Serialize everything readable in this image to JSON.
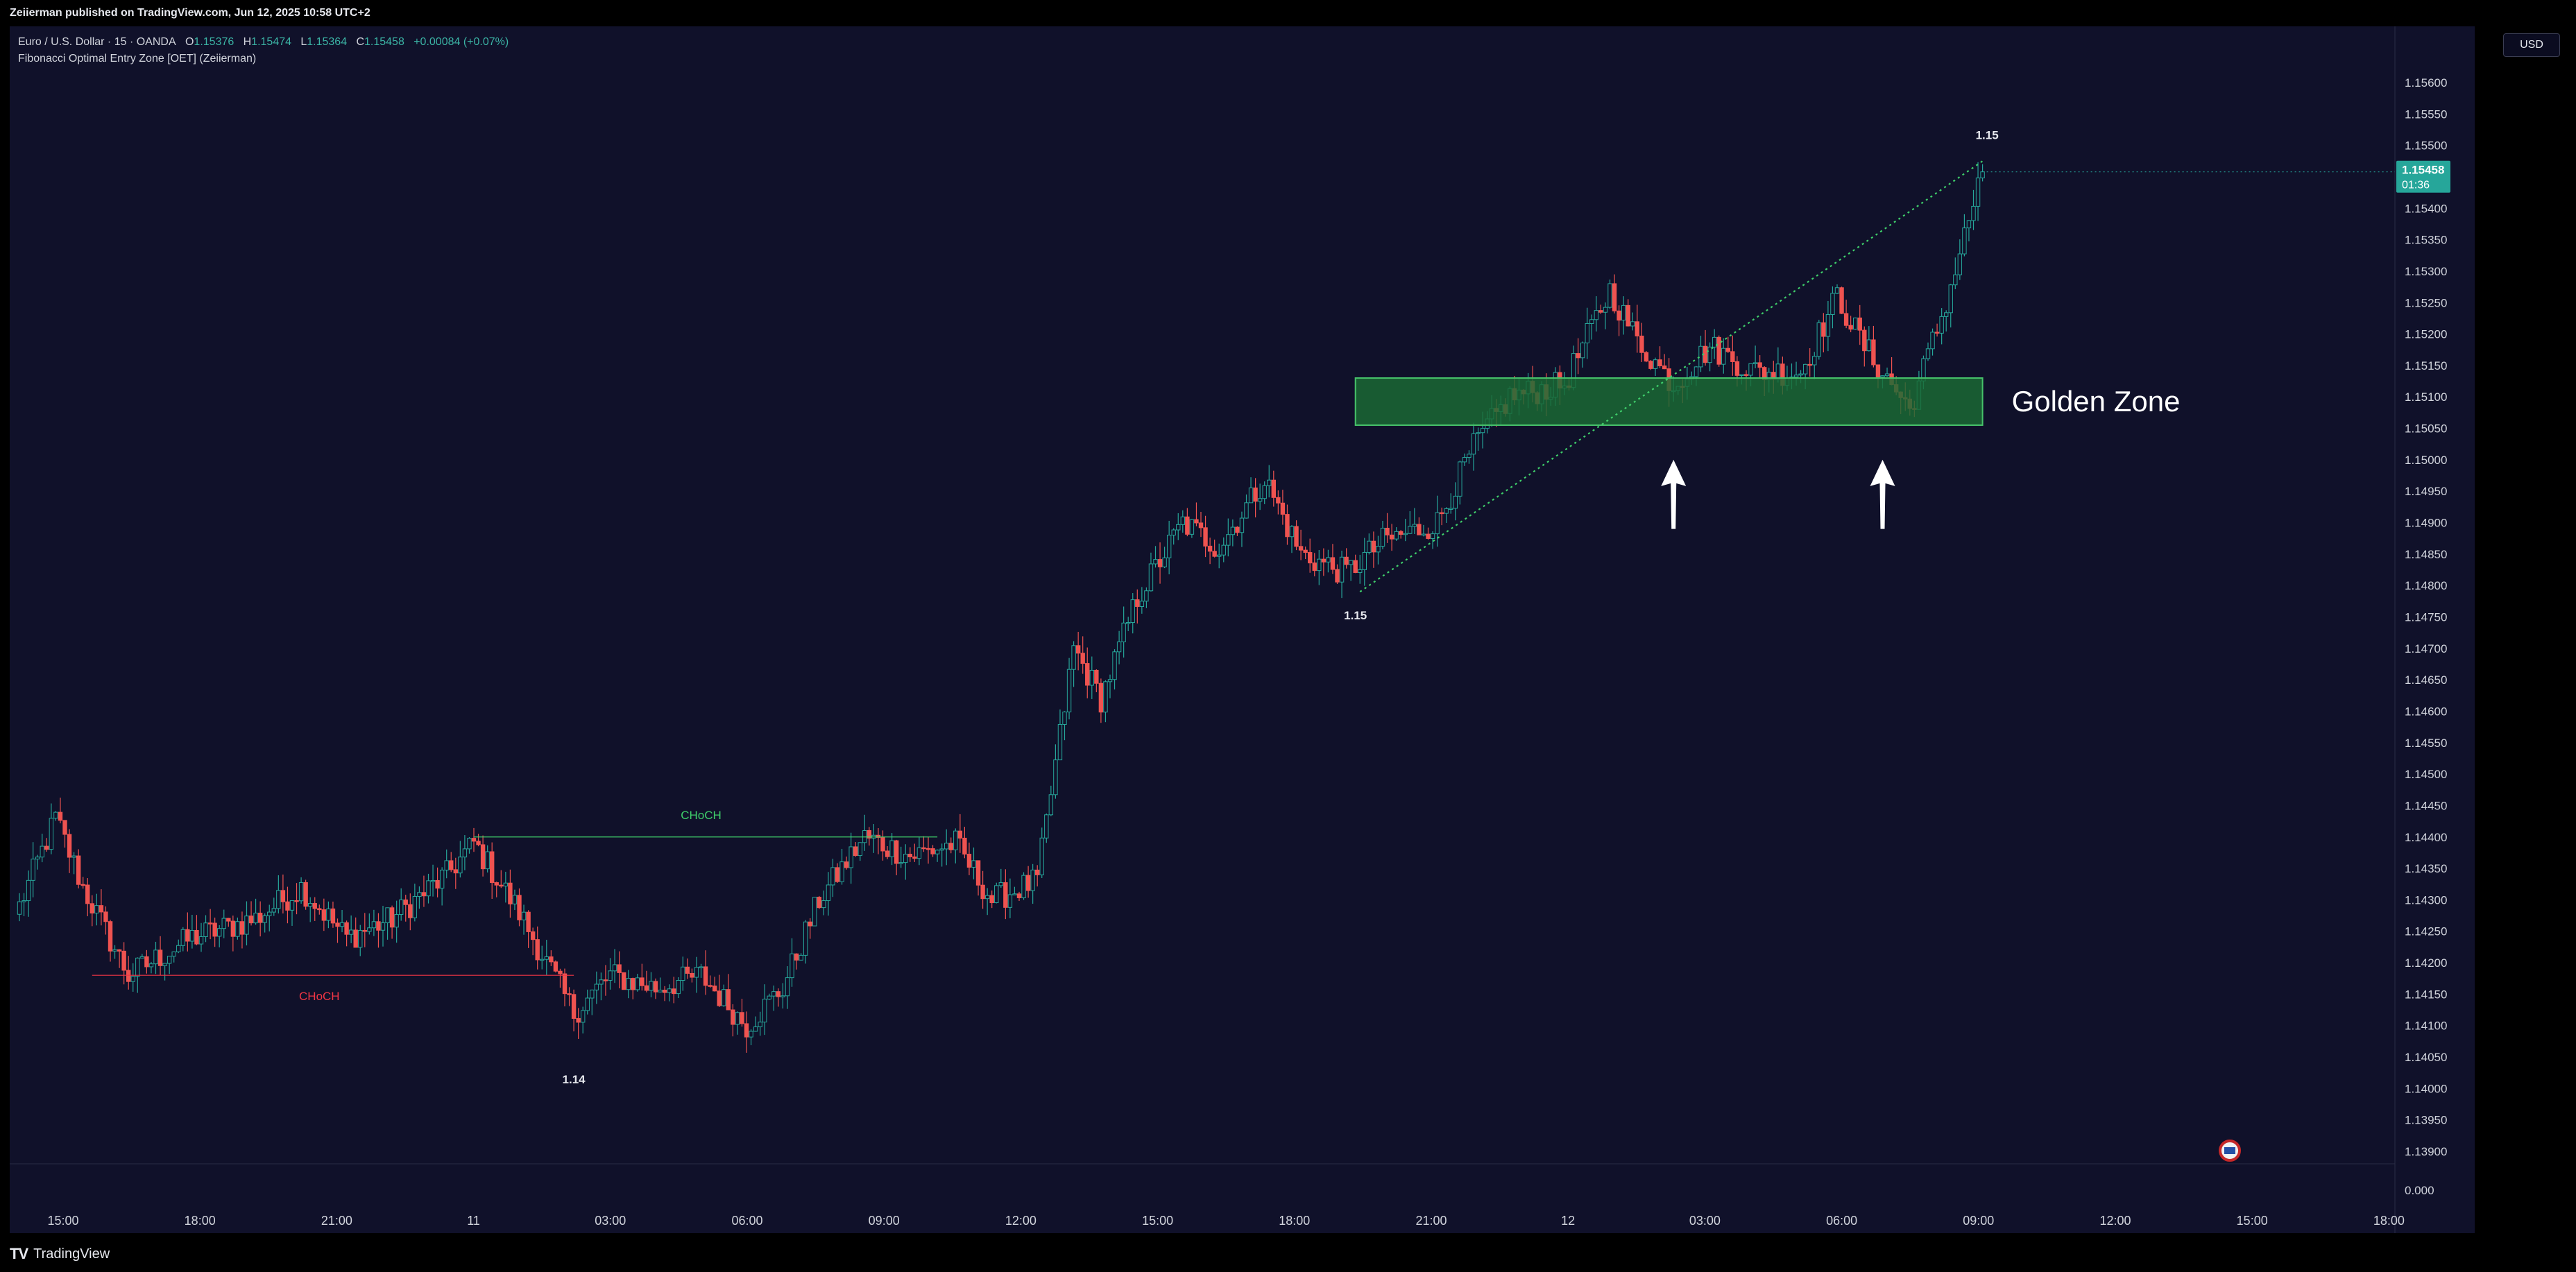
{
  "header": {
    "published": "Zeiierman published on TradingView.com, Jun 12, 2025 10:58 UTC+2"
  },
  "legend": {
    "symbol": "Euro / U.S. Dollar · 15 · OANDA",
    "o_label": "O",
    "o_val": "1.15376",
    "h_label": "H",
    "h_val": "1.15474",
    "l_label": "L",
    "l_val": "1.15364",
    "c_label": "C",
    "c_val": "1.15458",
    "change": "+0.00084 (+0.07%)",
    "indicator": "Fibonacci Optimal Entry Zone [OET] (Zeiierman)"
  },
  "currency_button": "USD",
  "footer": {
    "logo": "TV",
    "brand": "TradingView"
  },
  "colors": {
    "bull": "#26a69a",
    "bear": "#ef5350",
    "zone": "#1b6b35",
    "background": "#10112a"
  },
  "chart_data": {
    "type": "candlestick",
    "title": "",
    "y_ticks": [
      "1.15600",
      "1.15550",
      "1.15500",
      "1.15450",
      "1.15400",
      "1.15350",
      "1.15300",
      "1.15250",
      "1.15200",
      "1.15150",
      "1.15100",
      "1.15050",
      "1.15000",
      "1.14950",
      "1.14900",
      "1.14850",
      "1.14800",
      "1.14750",
      "1.14700",
      "1.14650",
      "1.14600",
      "1.14550",
      "1.14500",
      "1.14450",
      "1.14400",
      "1.14350",
      "1.14300",
      "1.14250",
      "1.14200",
      "1.14150",
      "1.14100",
      "1.14050",
      "1.14000",
      "1.13950",
      "1.13900"
    ],
    "y_extra_tick": "0.000",
    "x_ticks": [
      "15:00",
      "18:00",
      "21:00",
      "11",
      "03:00",
      "06:00",
      "09:00",
      "12:00",
      "15:00",
      "18:00",
      "21:00",
      "12",
      "03:00",
      "06:00",
      "09:00",
      "12:00",
      "15:00",
      "18:00"
    ],
    "last_price": {
      "value": "1.15458",
      "countdown": "01:36"
    },
    "annotations": {
      "choch_bear": "CHoCH",
      "choch_bull": "CHoCH",
      "low_label": "1.14",
      "swing_low_label": "1.15",
      "swing_high_label": "1.15",
      "golden_zone": "Golden Zone"
    },
    "levels": {
      "choch_bear_price": 1.1418,
      "choch_bull_price": 1.144,
      "zone_top": 1.1513,
      "zone_bottom": 1.15055,
      "fib_start_price": 1.1479,
      "fib_end_price": 1.15475
    },
    "anchors": [
      [
        0,
        1.1429
      ],
      [
        8,
        1.1443
      ],
      [
        14,
        1.1432
      ],
      [
        24,
        1.1418
      ],
      [
        38,
        1.1424
      ],
      [
        52,
        1.1427
      ],
      [
        62,
        1.1432
      ],
      [
        72,
        1.1424
      ],
      [
        82,
        1.1427
      ],
      [
        94,
        1.1434
      ],
      [
        100,
        1.1439
      ],
      [
        110,
        1.1428
      ],
      [
        122,
        1.1412
      ],
      [
        130,
        1.1418
      ],
      [
        140,
        1.1416
      ],
      [
        150,
        1.1418
      ],
      [
        160,
        1.141
      ],
      [
        168,
        1.1416
      ],
      [
        176,
        1.143
      ],
      [
        186,
        1.144
      ],
      [
        196,
        1.1437
      ],
      [
        206,
        1.1439
      ],
      [
        214,
        1.143
      ],
      [
        224,
        1.1433
      ],
      [
        232,
        1.147
      ],
      [
        238,
        1.1462
      ],
      [
        246,
        1.1478
      ],
      [
        256,
        1.149
      ],
      [
        264,
        1.1486
      ],
      [
        274,
        1.1497
      ],
      [
        282,
        1.1485
      ],
      [
        292,
        1.1482
      ],
      [
        300,
        1.1487
      ],
      [
        312,
        1.149
      ],
      [
        320,
        1.1502
      ],
      [
        328,
        1.151
      ],
      [
        340,
        1.1512
      ],
      [
        350,
        1.1527
      ],
      [
        356,
        1.1519
      ],
      [
        364,
        1.1512
      ],
      [
        372,
        1.1518
      ],
      [
        382,
        1.1514
      ],
      [
        392,
        1.1514
      ],
      [
        400,
        1.1526
      ],
      [
        406,
        1.1518
      ],
      [
        416,
        1.1508
      ],
      [
        424,
        1.1525
      ],
      [
        432,
        1.1546
      ]
    ],
    "arrows_at_bar": [
      364,
      410
    ]
  }
}
